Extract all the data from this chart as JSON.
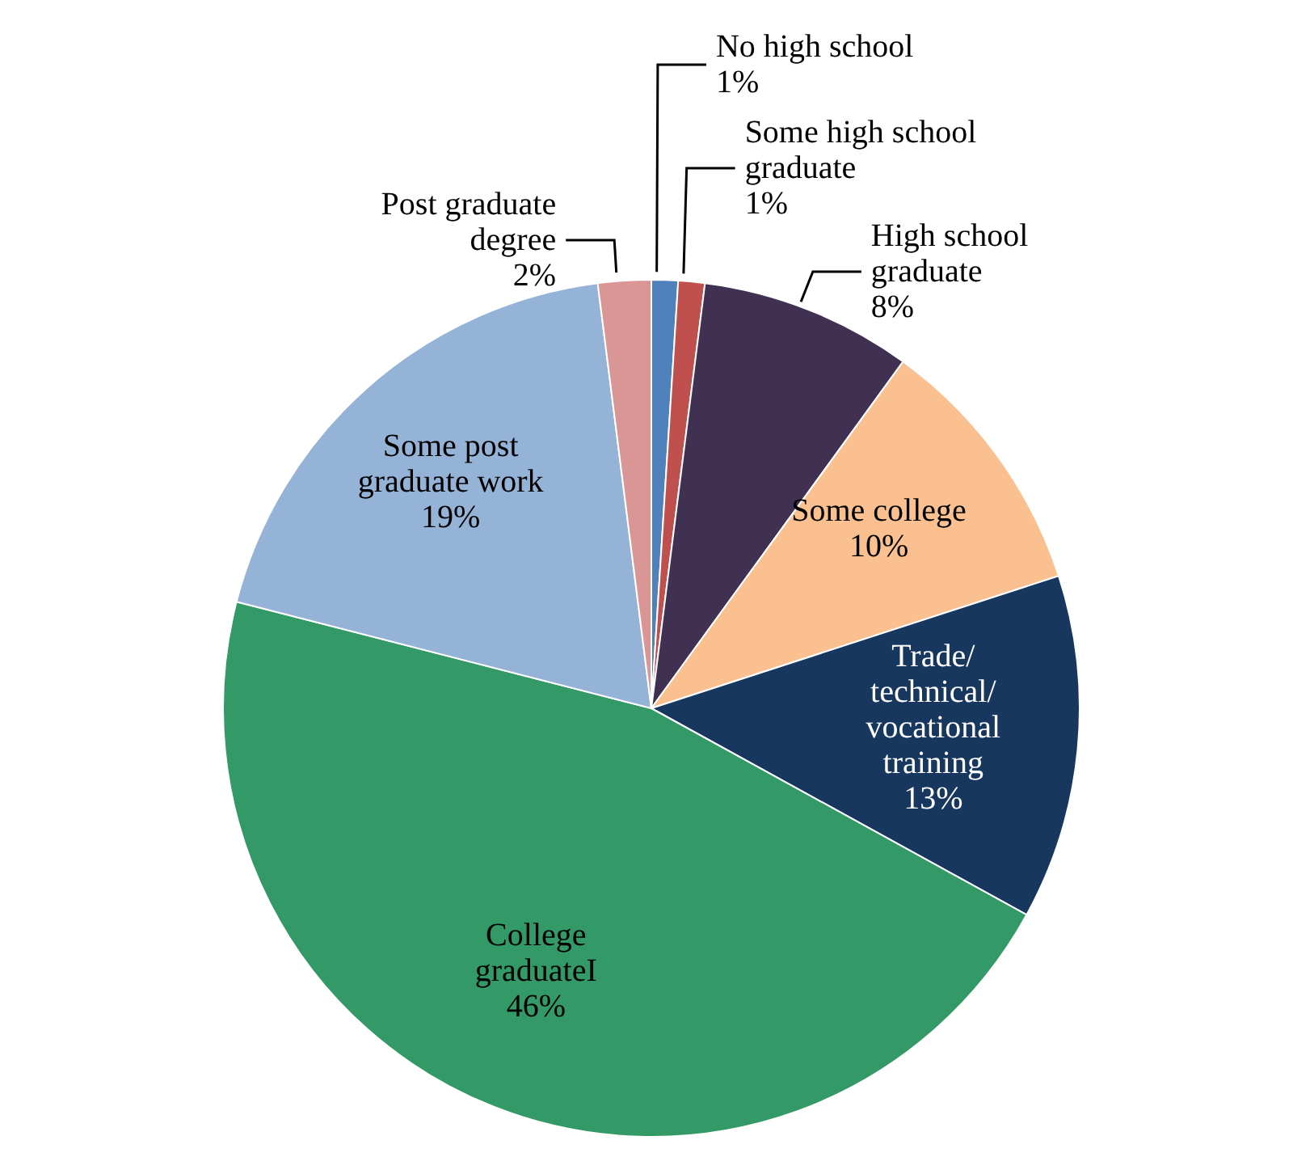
{
  "chart_data": {
    "type": "pie",
    "categories": [
      "No high school",
      "Some high school graduate",
      "High school graduate",
      "Some college",
      "Trade/technical/vocational training",
      "College graduateI",
      "Some post graduate work",
      "Post graduate degree"
    ],
    "values": [
      1,
      1,
      8,
      10,
      13,
      46,
      19,
      2
    ],
    "value_labels": [
      "1%",
      "1%",
      "8%",
      "10%",
      "13%",
      "46%",
      "19%",
      "2%"
    ],
    "colors": [
      "#4f81bd",
      "#c0504d",
      "#403152",
      "#fac090",
      "#17375e",
      "#339966",
      "#95b3d7",
      "#d99694"
    ],
    "legend": false
  }
}
